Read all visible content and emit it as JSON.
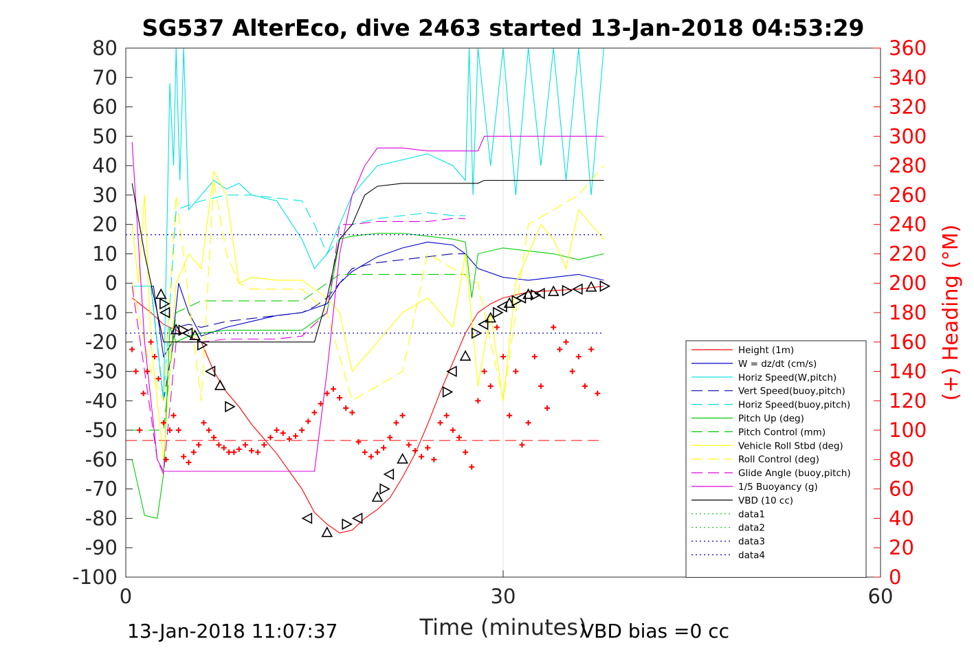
{
  "chart_data": {
    "type": "line",
    "title": "SG537 AlterEco, dive 2463 started 13-Jan-2018 04:53:29",
    "xlabel": "Time (minutes)",
    "ylabel_right": "(+) Heading (°M)",
    "xlim": [
      0,
      60
    ],
    "ylim": [
      -100,
      80
    ],
    "ylim_right": [
      0,
      360
    ],
    "x_ticks": [
      "0",
      "30",
      "60"
    ],
    "x_tick_values": [
      0,
      30,
      60
    ],
    "y_ticks": [
      "80",
      "70",
      "60",
      "50",
      "40",
      "30",
      "20",
      "10",
      "0",
      "-10",
      "-20",
      "-30",
      "-40",
      "-50",
      "-60",
      "-70",
      "-80",
      "-90",
      "-100"
    ],
    "y_tick_values": [
      80,
      70,
      60,
      50,
      40,
      30,
      20,
      10,
      0,
      -10,
      -20,
      -30,
      -40,
      -50,
      -60,
      -70,
      -80,
      -90,
      -100
    ],
    "y_right_ticks": [
      "360",
      "340",
      "320",
      "300",
      "280",
      "260",
      "240",
      "220",
      "200",
      "180",
      "160",
      "140",
      "120",
      "100",
      "80",
      "60",
      "40",
      "20",
      "0"
    ],
    "y_right_tick_values": [
      360,
      340,
      320,
      300,
      280,
      260,
      240,
      220,
      200,
      180,
      160,
      140,
      120,
      100,
      80,
      60,
      40,
      20,
      0
    ],
    "grid": "x-only",
    "legend_position": "bottom-right",
    "footer_left": "13-Jan-2018 11:07:37",
    "footer_right": "VBD bias =0 cc",
    "colors": {
      "height": "#ff0000",
      "w": "#0000cc",
      "hspeed": "#00e0e0",
      "vspeed": "#0000aa",
      "pitch": "#00cc00",
      "pitch_ctrl": "#00cc00",
      "roll": "#ffff00",
      "roll_ctrl": "#ffff00",
      "glide": "#dd00dd",
      "buoy": "#dd00dd",
      "vbd": "#000000",
      "data12": "#00cc00",
      "data34": "#0000cc",
      "heading": "#ff0000",
      "triangles": "#000000",
      "right_axis": "#ff0000"
    },
    "series": [
      {
        "name": "Height (1m)",
        "style": "solid",
        "color": "#ff0000",
        "x": [
          0.5,
          2,
          3,
          4.5,
          6,
          7,
          8,
          9,
          10,
          12,
          14,
          15,
          16,
          17,
          18,
          19,
          20,
          21,
          22,
          23,
          24,
          25,
          26,
          27,
          28,
          29,
          30,
          31,
          32,
          34,
          36,
          38
        ],
        "y": [
          -5,
          -10,
          -14,
          -17,
          -20,
          -30,
          -37,
          -42,
          -48,
          -58,
          -70,
          -78,
          -82,
          -85,
          -84,
          -80,
          -77,
          -73,
          -66,
          -58,
          -48,
          -37,
          -27,
          -17,
          -10,
          -7,
          -5,
          -4,
          -3,
          -2.5,
          -2,
          -1
        ]
      },
      {
        "name": "W = dz/dt (cm/s)",
        "style": "solid",
        "color": "#0000cc",
        "x": [
          0.5,
          2.2,
          3,
          3.7,
          4.2,
          5,
          6,
          8,
          10,
          12,
          14,
          16,
          17,
          18,
          20,
          22,
          24,
          26,
          27,
          28,
          30,
          32,
          34,
          36,
          38
        ],
        "y": [
          -1,
          -1,
          -25,
          -20,
          0,
          -10,
          -18,
          -15,
          -13,
          -11,
          -10,
          -7,
          0,
          4,
          9,
          12,
          14,
          13,
          10,
          5,
          2,
          1,
          2,
          3,
          1
        ]
      },
      {
        "name": "Horiz Speed(W,pitch)",
        "style": "solid",
        "color": "#00e0e0",
        "x": [
          0.5,
          2,
          3,
          3.5,
          3.8,
          4,
          4.3,
          4.6,
          5,
          6,
          7,
          8,
          9,
          10,
          12,
          14,
          15,
          16,
          17,
          18,
          19,
          20,
          22,
          24,
          26,
          27,
          27.3,
          27.6,
          28,
          29,
          30,
          31,
          32,
          33,
          34,
          35,
          36,
          37,
          38
        ],
        "y": [
          -1,
          -1,
          -40,
          68,
          40,
          80,
          35,
          80,
          25,
          30,
          35,
          32,
          34,
          30,
          28,
          15,
          5,
          10,
          20,
          30,
          35,
          40,
          42,
          44,
          40,
          35,
          80,
          30,
          80,
          40,
          80,
          30,
          80,
          40,
          80,
          35,
          80,
          30,
          80
        ]
      },
      {
        "name": "Vert Speed(buoy,pitch)",
        "style": "dash",
        "color": "#0000aa",
        "x": [
          0.5,
          2,
          3,
          4,
          5,
          6,
          8,
          10,
          12,
          14,
          15,
          16,
          17,
          18,
          20,
          22,
          24,
          26,
          27
        ],
        "y": [
          -1,
          -1,
          -40,
          -15,
          -14,
          -15,
          -13,
          -12,
          -11,
          -10,
          -8,
          -5,
          0,
          5,
          7,
          8,
          9,
          10,
          10
        ]
      },
      {
        "name": "Horiz Speed(buoy,pitch)",
        "style": "dash",
        "color": "#00e0e0",
        "x": [
          0.5,
          2,
          3,
          4,
          6,
          8,
          10,
          12,
          14,
          15,
          16,
          18,
          20,
          22,
          24,
          26,
          27
        ],
        "y": [
          -1,
          -1,
          -40,
          25,
          28,
          30,
          30,
          29,
          28,
          20,
          10,
          20,
          22,
          23,
          24,
          23,
          23
        ]
      },
      {
        "name": "Pitch Up (deg)",
        "style": "solid",
        "color": "#00cc00",
        "x": [
          0.5,
          1.5,
          2.5,
          3,
          3.5,
          4,
          5,
          6,
          8,
          10,
          12,
          14,
          16,
          17,
          18,
          20,
          22,
          24,
          26,
          27,
          27.5,
          28,
          30,
          32,
          34,
          36,
          38
        ],
        "y": [
          -60,
          -79,
          -80,
          -65,
          -15,
          -20,
          -18,
          -17,
          -16,
          -16,
          -16,
          -16,
          -10,
          15,
          16,
          17,
          17,
          16,
          15,
          14,
          -5,
          10,
          12,
          11,
          10,
          8,
          10
        ]
      },
      {
        "name": "Pitch Control (mm)",
        "style": "dash",
        "color": "#00cc00",
        "x": [
          0.5,
          2,
          3,
          4,
          6,
          8,
          10,
          12,
          14,
          15,
          16,
          17,
          18,
          20,
          22,
          24,
          26,
          27
        ],
        "y": [
          -50,
          -50,
          -50,
          -10,
          -6,
          -6,
          -6,
          -6,
          -6,
          -3,
          0,
          3,
          3,
          3,
          3,
          3,
          3,
          3
        ]
      },
      {
        "name": "Vehicle Roll Stbd (deg)",
        "style": "solid",
        "color": "#ffff00",
        "x": [
          0.5,
          1,
          1.5,
          2,
          3,
          4,
          5,
          6,
          7,
          8,
          9,
          10,
          12,
          14,
          16,
          17,
          18,
          20,
          22,
          24,
          26,
          27,
          28,
          29,
          30,
          31,
          32,
          33,
          34,
          35,
          36,
          37,
          38
        ],
        "y": [
          20,
          0,
          30,
          -20,
          -60,
          0,
          10,
          5,
          38,
          30,
          0,
          2,
          1,
          1,
          -5,
          -10,
          -30,
          -20,
          -10,
          -5,
          -15,
          10,
          -35,
          -10,
          -40,
          0,
          10,
          20,
          15,
          5,
          25,
          20,
          15
        ]
      },
      {
        "name": "Roll Control (deg)",
        "style": "dash",
        "color": "#ffff00",
        "x": [
          0.5,
          2,
          3,
          4,
          6,
          7,
          8,
          9,
          10,
          12,
          14,
          16,
          18,
          20,
          22,
          24,
          26,
          28,
          30,
          32,
          34,
          36,
          38
        ],
        "y": [
          0,
          -30,
          -40,
          30,
          -40,
          35,
          10,
          0,
          -2,
          -2,
          -2,
          -10,
          -40,
          -35,
          -30,
          10,
          5,
          0,
          -40,
          20,
          25,
          30,
          40
        ]
      },
      {
        "name": "Glide Angle (buoy,pitch)",
        "style": "dash",
        "color": "#dd00dd",
        "x": [
          0.5,
          1.5,
          2.5,
          3,
          4,
          6,
          8,
          10,
          12,
          14,
          16,
          17,
          18,
          20,
          22,
          24,
          26,
          27
        ],
        "y": [
          -1,
          -30,
          -60,
          -65,
          -20,
          -20,
          -19,
          -19,
          -19,
          -18,
          -10,
          20,
          20,
          21,
          21,
          21,
          22,
          22
        ]
      },
      {
        "name": "1/5 Buoyancy (g)",
        "style": "solid",
        "color": "#dd00dd",
        "x": [
          0.5,
          1.5,
          2.5,
          3,
          4,
          6,
          8,
          10,
          12,
          14,
          15,
          16,
          17,
          18,
          19,
          20,
          22,
          24,
          26,
          28,
          28.5,
          30,
          32,
          34,
          36,
          38
        ],
        "y": [
          48,
          -20,
          -60,
          -64,
          -64,
          -64,
          -64,
          -64,
          -64,
          -64,
          -64,
          -30,
          10,
          30,
          40,
          46,
          46,
          45,
          45,
          45,
          50,
          50,
          50,
          50,
          50,
          50
        ]
      },
      {
        "name": "VBD (10 cc)",
        "style": "solid",
        "color": "#000000",
        "x": [
          0.5,
          1.5,
          2.5,
          3,
          4,
          6,
          8,
          10,
          12,
          14,
          15,
          16,
          17,
          18,
          19,
          20,
          22,
          24,
          26,
          28,
          28.5,
          30,
          32,
          34,
          36,
          38
        ],
        "y": [
          34,
          10,
          -10,
          -20,
          -20,
          -20,
          -20,
          -20,
          -20,
          -20,
          -20,
          -5,
          15,
          20,
          30,
          33,
          34,
          34,
          34,
          34,
          35,
          35,
          35,
          35,
          35,
          35
        ]
      },
      {
        "name": "data1",
        "style": "dot",
        "color": "#00cc00",
        "x": [],
        "y": []
      },
      {
        "name": "data2",
        "style": "dot",
        "color": "#00cc00",
        "x": [],
        "y": []
      },
      {
        "name": "data3",
        "style": "dot",
        "color": "#0000cc",
        "x": [
          0,
          38
        ],
        "y": [
          16.5,
          16.5
        ]
      },
      {
        "name": "data4",
        "style": "dot",
        "color": "#0000cc",
        "x": [
          0,
          38
        ],
        "y": [
          -17,
          -17
        ]
      }
    ],
    "reference_lines": [
      {
        "axis": "y",
        "value": -53.5,
        "x": [
          0,
          38
        ],
        "style": "dash",
        "color": "#ff0000"
      }
    ],
    "heading_points": {
      "color": "#ff0000",
      "x": [
        0.5,
        0.8,
        1.1,
        1.4,
        1.7,
        2,
        2.3,
        2.6,
        3,
        3.2,
        3.5,
        3.8,
        4.2,
        4.6,
        5,
        5.4,
        5.8,
        6.2,
        6.6,
        7,
        7.4,
        7.8,
        8.2,
        8.6,
        9,
        9.5,
        10,
        10.5,
        11,
        11.5,
        12,
        12.5,
        13,
        13.5,
        14,
        14.5,
        15,
        15.5,
        16,
        16.5,
        17,
        17.5,
        18,
        18.5,
        19,
        19.5,
        20,
        20.5,
        21,
        21.5,
        22,
        22.5,
        23,
        23.5,
        24,
        24.5,
        25,
        25.5,
        26,
        26.5,
        27,
        27.5,
        28,
        28.5,
        29,
        29.5,
        30,
        30.5,
        31,
        31.5,
        32,
        32.5,
        33,
        33.5,
        34,
        34.5,
        35,
        35.5,
        36,
        36.5,
        37,
        37.5
      ],
      "y": [
        155,
        140,
        100,
        125,
        140,
        160,
        150,
        135,
        105,
        80,
        100,
        110,
        100,
        82,
        78,
        85,
        90,
        105,
        100,
        95,
        90,
        88,
        85,
        85,
        87,
        90,
        86,
        85,
        90,
        95,
        100,
        98,
        94,
        96,
        100,
        106,
        112,
        118,
        125,
        128,
        122,
        115,
        112,
        92,
        85,
        82,
        85,
        88,
        95,
        105,
        110,
        90,
        86,
        82,
        88,
        80,
        105,
        110,
        100,
        95,
        85,
        75,
        120,
        140,
        130,
        170,
        150,
        110,
        140,
        90,
        105,
        150,
        130,
        115,
        170,
        155,
        160,
        140,
        150,
        130,
        155,
        125
      ]
    },
    "triangle_markers": {
      "color": "#000000",
      "x": [
        2.8,
        3,
        3.2,
        4,
        4.5,
        5,
        5.5,
        6,
        6.8,
        7.5,
        8.2,
        14.5,
        16,
        17.5,
        18.5,
        20,
        20.5,
        21,
        22,
        25.5,
        26,
        27,
        27.8,
        28.5,
        29,
        29.5,
        30,
        30.5,
        31,
        31.5,
        32,
        32.5,
        33,
        34,
        35,
        36,
        37,
        38
      ],
      "y": [
        -4,
        -7,
        -10,
        -16,
        -16,
        -17,
        -18,
        -21,
        -30,
        -35,
        -42,
        -80,
        -85,
        -82,
        -80,
        -73,
        -70,
        -65,
        -60,
        -37,
        -30,
        -25,
        -17,
        -14,
        -12,
        -10,
        -8,
        -7,
        -6,
        -5,
        -4,
        -4,
        -3.5,
        -3,
        -2.5,
        -2,
        -1.5,
        -1
      ]
    }
  }
}
